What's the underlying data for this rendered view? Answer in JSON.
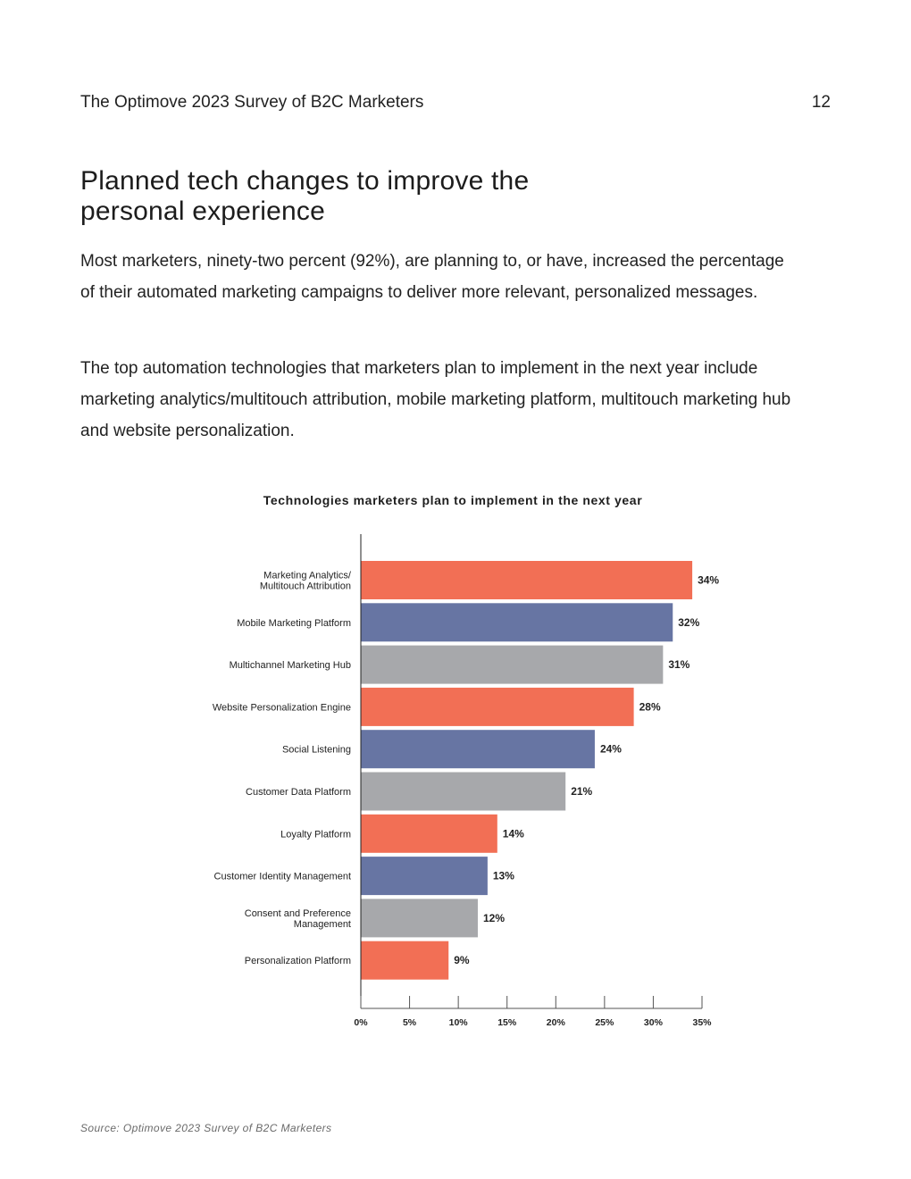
{
  "header": {
    "document_title": "The Optimove 2023 Survey of B2C Marketers",
    "page_number": "12"
  },
  "section": {
    "heading": "Planned tech changes to improve the personal experience",
    "paragraphs": [
      "Most marketers, ninety-two percent (92%), are planning to, or have, increased the percentage of their automated marketing campaigns to deliver more relevant, personalized messages.",
      "The top automation technologies that marketers plan to implement in the next year include marketing analytics/multitouch attribution, mobile marketing platform, multitouch marketing hub and website personalization."
    ]
  },
  "chart_data": {
    "type": "bar",
    "orientation": "horizontal",
    "title": "Technologies marketers plan to implement in the next year",
    "categories": [
      [
        "Marketing Analytics/",
        "Multitouch Attribution"
      ],
      [
        "Mobile Marketing Platform"
      ],
      [
        "Multichannel Marketing Hub"
      ],
      [
        "Website Personalization Engine"
      ],
      [
        "Social Listening"
      ],
      [
        "Customer Data Platform"
      ],
      [
        "Loyalty Platform"
      ],
      [
        "Customer Identity Management"
      ],
      [
        "Consent and Preference",
        "Management"
      ],
      [
        "Personalization Platform"
      ]
    ],
    "values": [
      34,
      32,
      31,
      28,
      24,
      21,
      14,
      13,
      12,
      9
    ],
    "value_labels": [
      "34%",
      "32%",
      "31%",
      "28%",
      "24%",
      "21%",
      "14%",
      "13%",
      "12%",
      "9%"
    ],
    "bar_colors": [
      "#f26f55",
      "#6775a3",
      "#a7a8ab",
      "#f26f55",
      "#6775a3",
      "#a7a8ab",
      "#f26f55",
      "#6775a3",
      "#a7a8ab",
      "#f26f55"
    ],
    "xlim": [
      0,
      35
    ],
    "xticks": [
      0,
      5,
      10,
      15,
      20,
      25,
      30,
      35
    ],
    "xtick_labels": [
      "0%",
      "5%",
      "10%",
      "15%",
      "20%",
      "25%",
      "30%",
      "35%"
    ],
    "xlabel": "",
    "ylabel": "",
    "grid": false
  },
  "footer": {
    "source": "Source: Optimove 2023 Survey of B2C Marketers"
  }
}
